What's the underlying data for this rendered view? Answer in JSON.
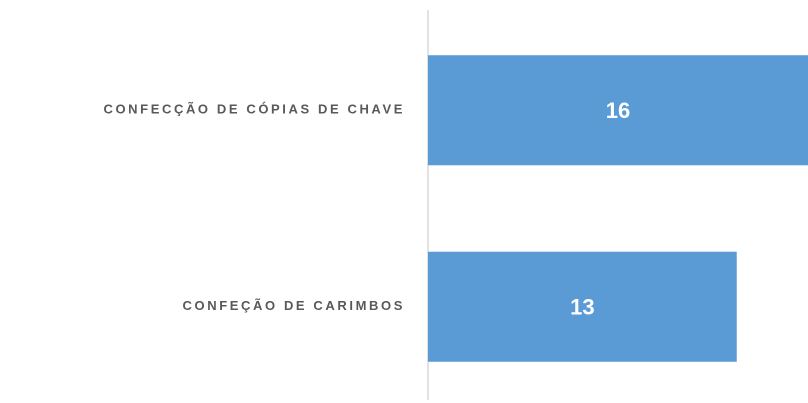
{
  "chart_data": {
    "type": "bar",
    "orientation": "horizontal",
    "categories": [
      "CONFECÇÃO DE CÓPIAS DE CHAVE",
      "CONFEÇÃO DE CARIMBOS"
    ],
    "values": [
      16,
      13
    ],
    "color": "#5b9bd5",
    "xlim": [
      0,
      16
    ]
  }
}
